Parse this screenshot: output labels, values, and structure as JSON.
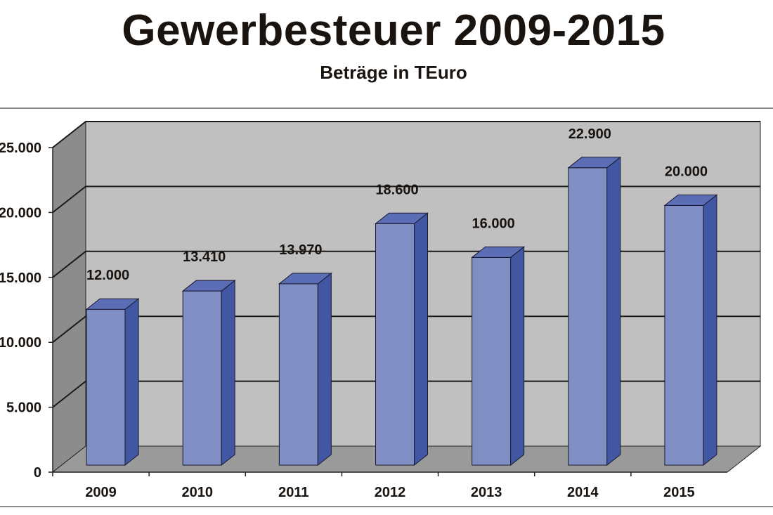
{
  "chart_data": {
    "type": "bar",
    "title": "Gewerbesteuer 2009-2015",
    "subtitle": "Beträge in TEuro",
    "categories": [
      "2009",
      "2010",
      "2011",
      "2012",
      "2013",
      "2014",
      "2015"
    ],
    "values": [
      12000,
      13410,
      13970,
      18600,
      16000,
      22900,
      20000
    ],
    "value_labels": [
      "12.000",
      "13.410",
      "13.970",
      "18.600",
      "16.000",
      "22.900",
      "20.000"
    ],
    "y_ticks": [
      0,
      5000,
      10000,
      15000,
      20000,
      25000
    ],
    "y_tick_labels": [
      "0",
      "5.000",
      "10.000",
      "15.000",
      "20.000",
      "25.000"
    ],
    "ylim": [
      0,
      25000
    ],
    "xlabel": "",
    "ylabel": "",
    "grid": true,
    "legend": "none",
    "three_d": true,
    "colors": {
      "bar_front": "#7f8ec3",
      "bar_side": "#4257a3",
      "bar_top": "#5a6db5",
      "back_wall": "#c0c0c0",
      "side_wall": "#8c8c8c",
      "floor": "#9a9a9a",
      "grid": "#1a1a1a"
    }
  }
}
